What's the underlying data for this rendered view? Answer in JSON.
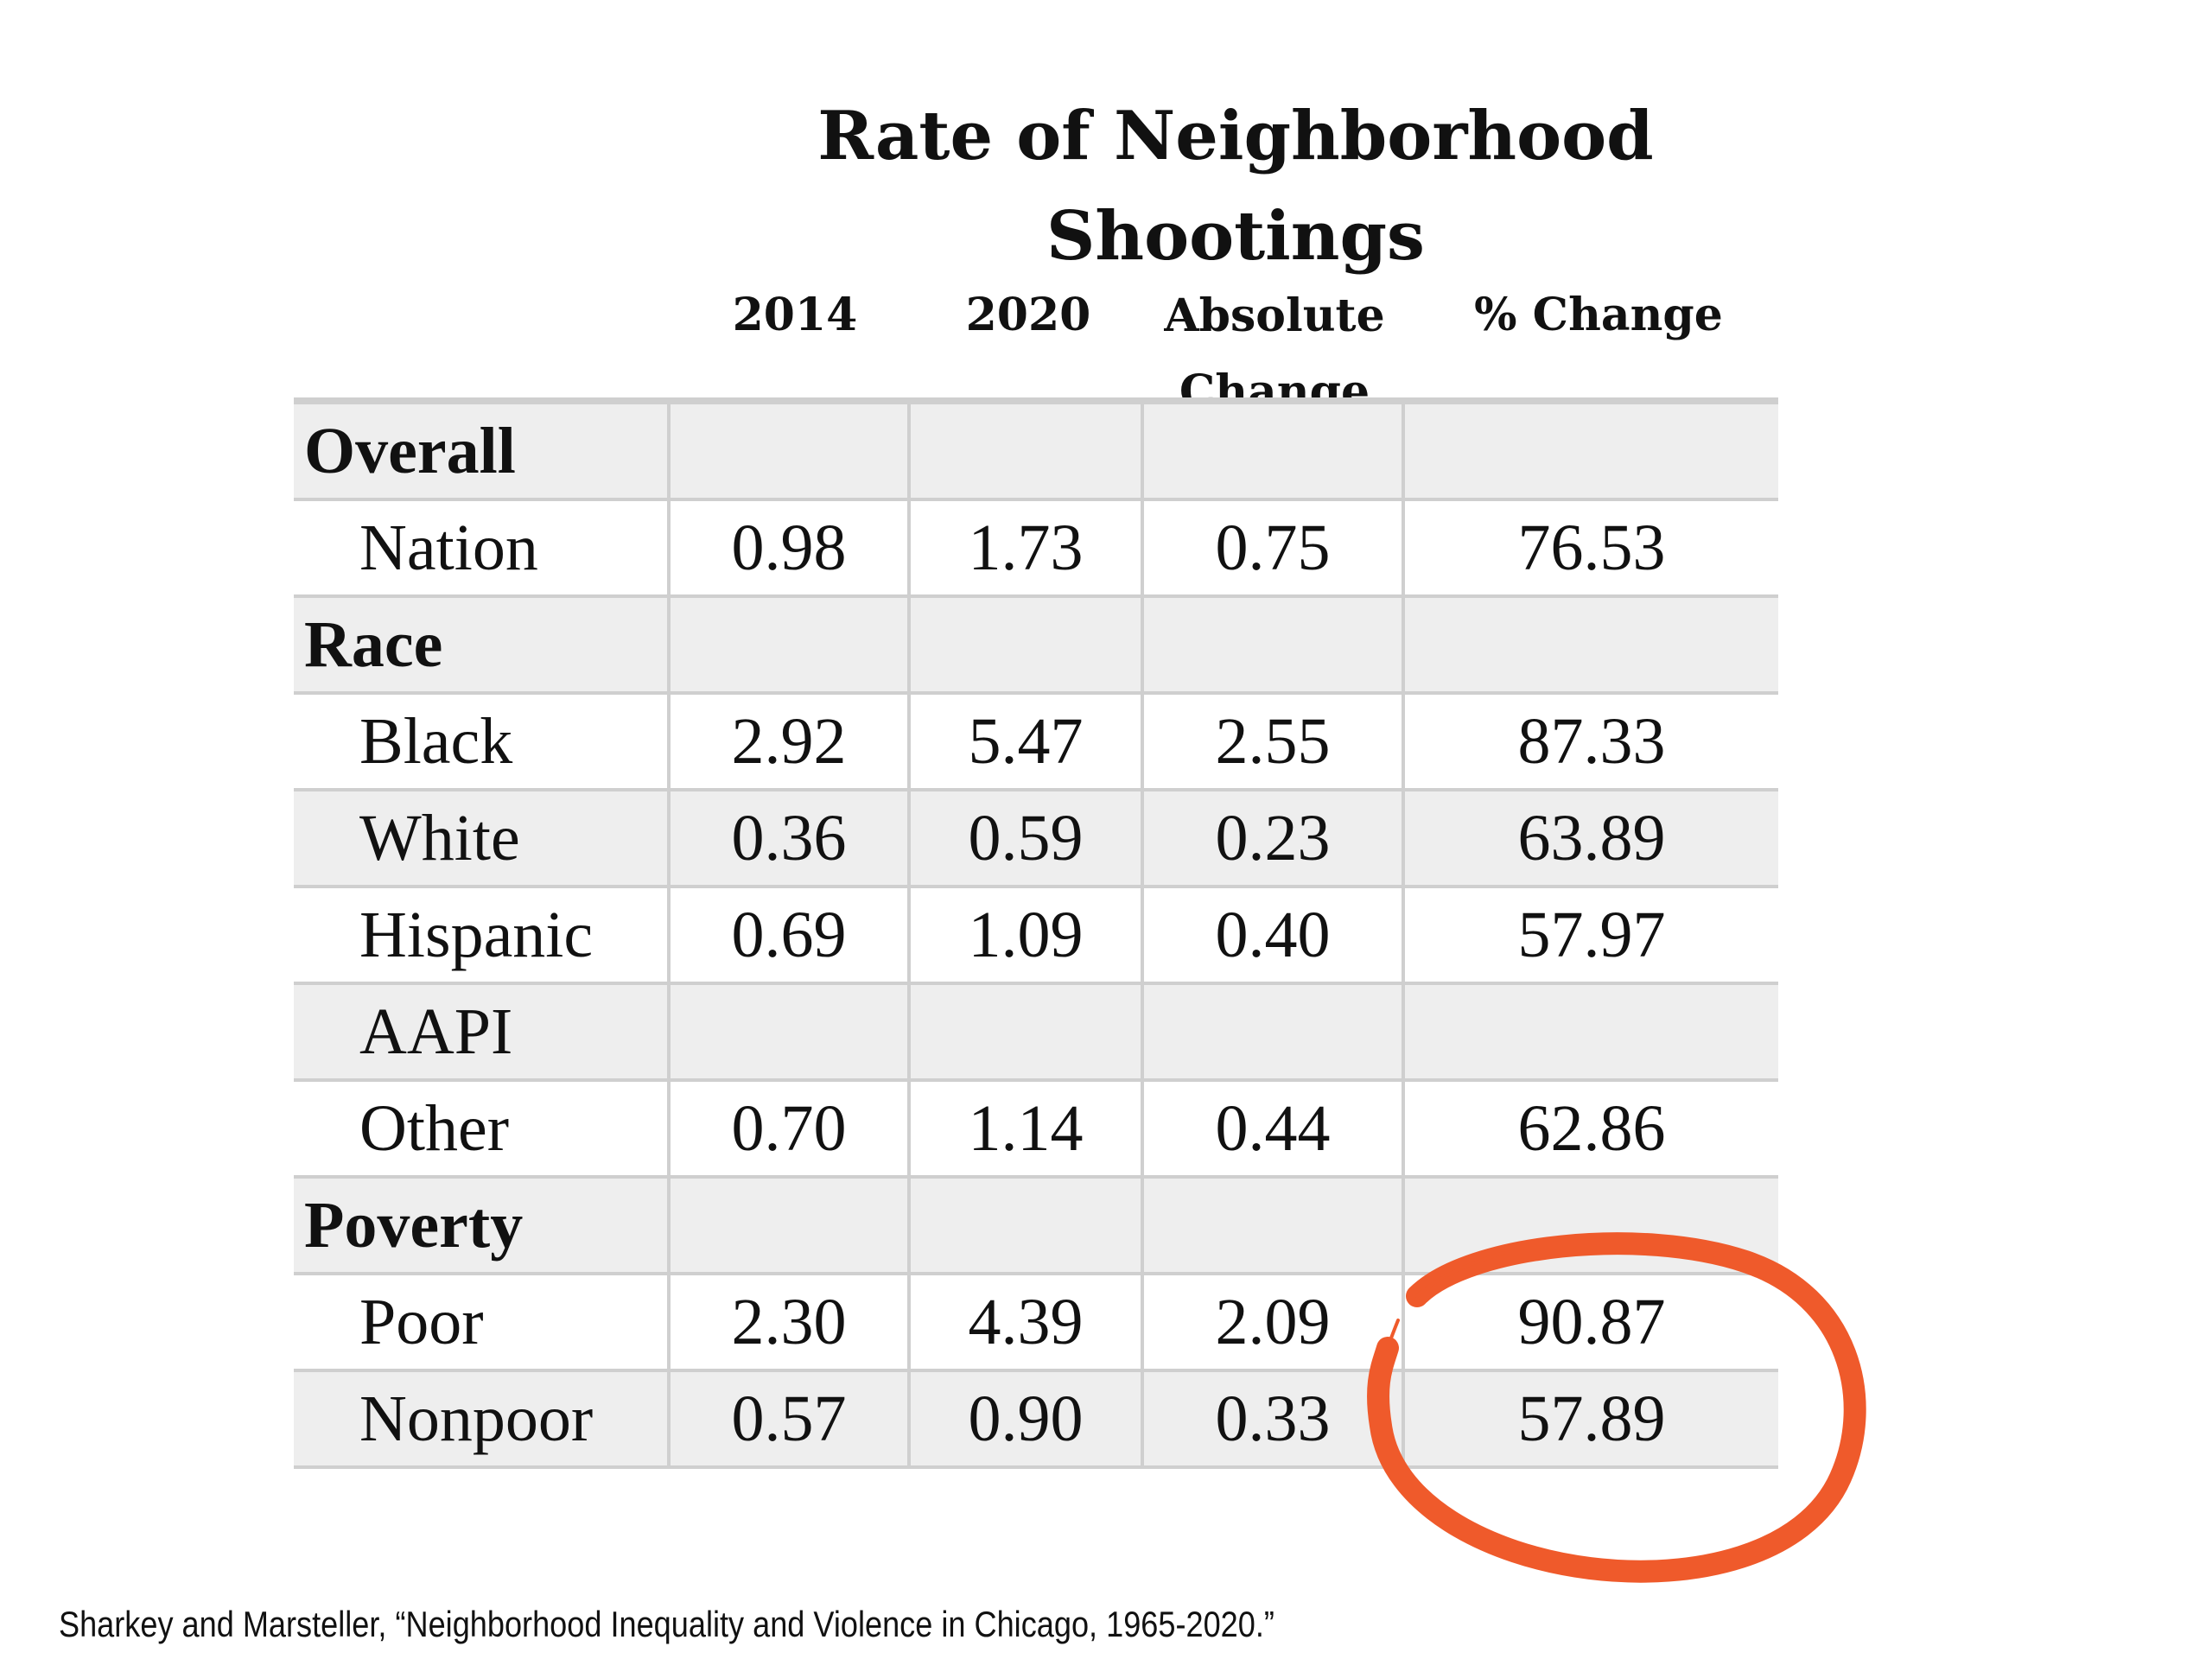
{
  "title": "Rate of Neighborhood Shootings",
  "columns": [
    "2014",
    "2020",
    "Absolute Change",
    "% Change"
  ],
  "rows": [
    {
      "label": "Overall",
      "v2014": "",
      "v2020": "",
      "abs": "",
      "pct": ""
    },
    {
      "label": "Nation",
      "v2014": "0.98",
      "v2020": "1.73",
      "abs": "0.75",
      "pct": "76.53"
    },
    {
      "label": "Race",
      "v2014": "",
      "v2020": "",
      "abs": "",
      "pct": ""
    },
    {
      "label": "Black",
      "v2014": "2.92",
      "v2020": "5.47",
      "abs": "2.55",
      "pct": "87.33"
    },
    {
      "label": "White",
      "v2014": "0.36",
      "v2020": "0.59",
      "abs": "0.23",
      "pct": "63.89"
    },
    {
      "label": "Hispanic",
      "v2014": "0.69",
      "v2020": "1.09",
      "abs": "0.40",
      "pct": "57.97"
    },
    {
      "label": "AAPI",
      "v2014": "",
      "v2020": "",
      "abs": "",
      "pct": ""
    },
    {
      "label": "Other",
      "v2014": "0.70",
      "v2020": "1.14",
      "abs": "0.44",
      "pct": "62.86"
    },
    {
      "label": "Poverty",
      "v2014": "",
      "v2020": "",
      "abs": "",
      "pct": ""
    },
    {
      "label": "Poor",
      "v2014": "2.30",
      "v2020": "4.39",
      "abs": "2.09",
      "pct": "90.87"
    },
    {
      "label": "Nonpoor",
      "v2014": "0.57",
      "v2020": "0.90",
      "abs": "0.33",
      "pct": "57.89"
    }
  ],
  "source": "Sharkey and Marsteller, “Neighborhood Inequality and Violence in Chicago, 1965-2020.”",
  "colors": {
    "highlight": "#ef5a2b",
    "gridline": "#cfcfcf",
    "shade": "#eeeeee"
  }
}
